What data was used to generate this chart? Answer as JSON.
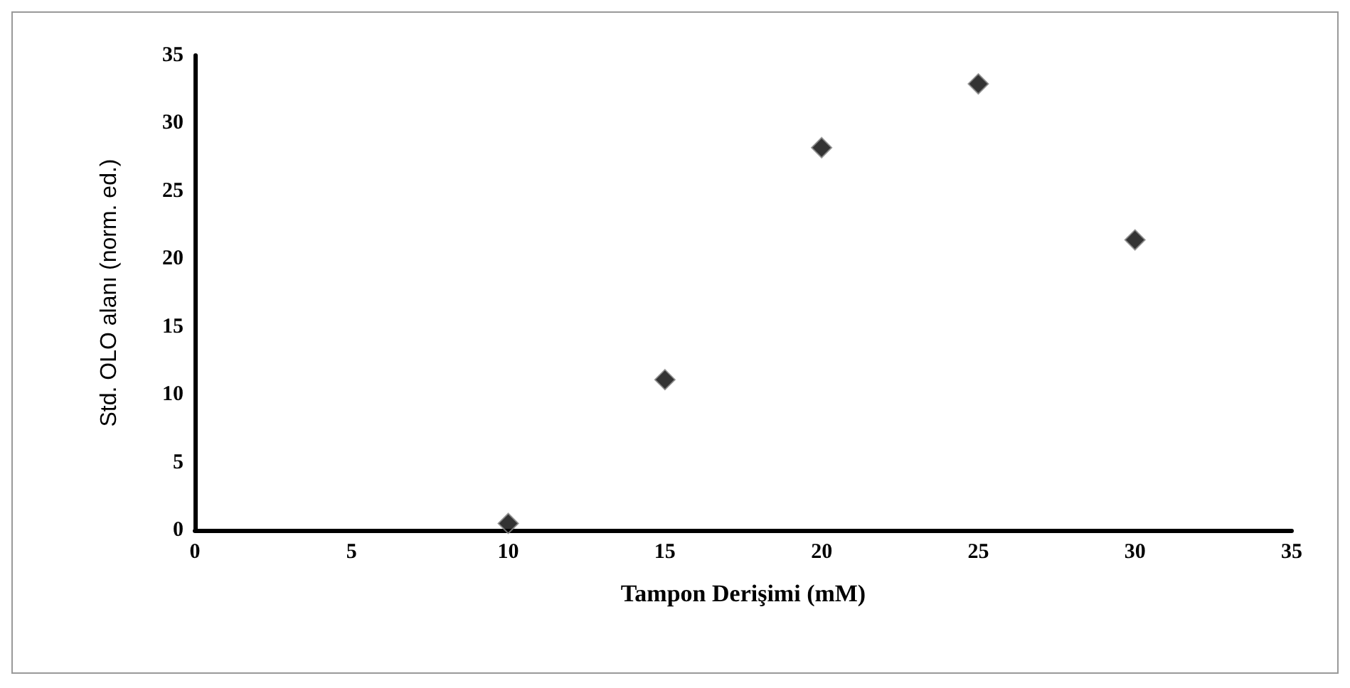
{
  "chart_data": {
    "type": "scatter",
    "xlabel": "Tampon Derişimi (mM)",
    "ylabel": "Std. OLO alanı (norm. ed.)",
    "x": [
      10,
      15,
      20,
      25,
      30
    ],
    "series": [
      {
        "color": "#000000",
        "values": [
          0.5,
          11.1,
          28.2,
          32.9,
          21.4
        ]
      }
    ],
    "xlim": [
      0,
      35
    ],
    "xticks": [
      0,
      5,
      10,
      15,
      20,
      25,
      30,
      35
    ],
    "ylim": [
      0,
      35
    ],
    "yticks": [
      0,
      5,
      10,
      15,
      20,
      25,
      30,
      35
    ],
    "grid": false,
    "marker": "diamond"
  }
}
